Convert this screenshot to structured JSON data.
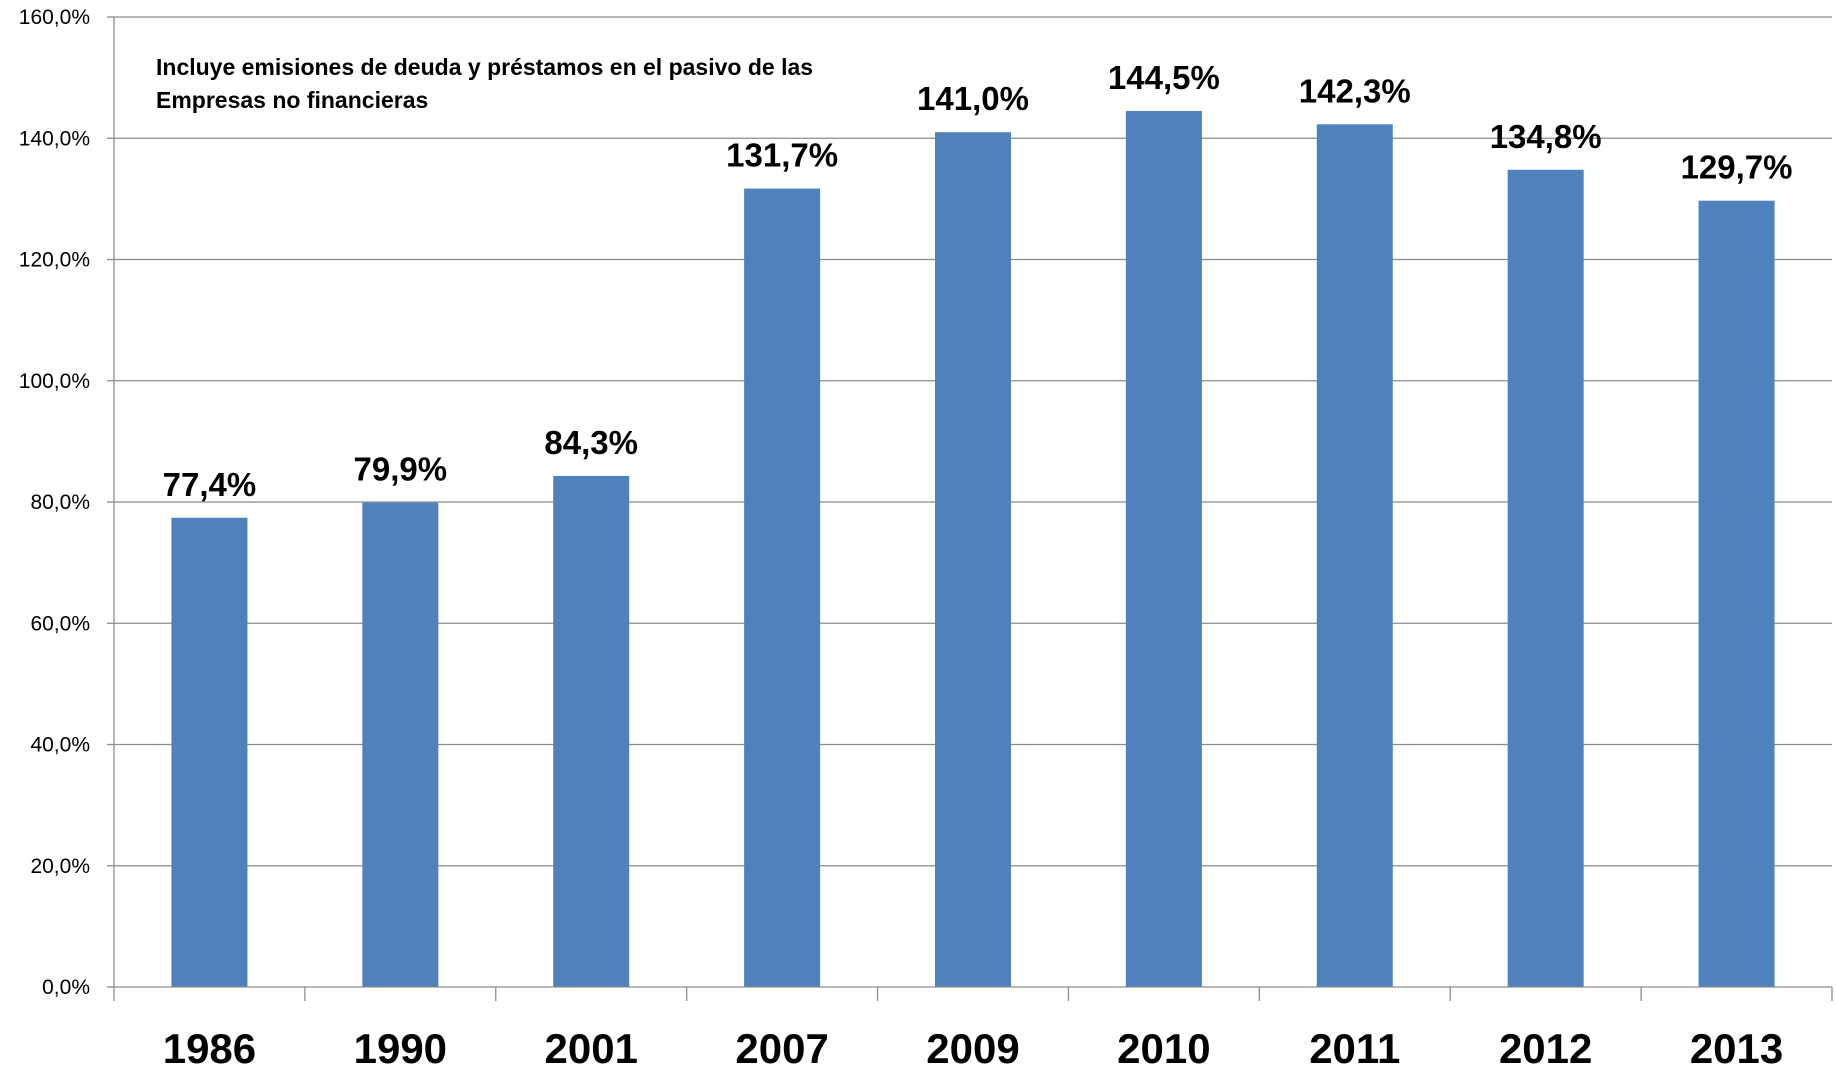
{
  "chart_data": {
    "type": "bar",
    "categories": [
      "1986",
      "1990",
      "2001",
      "2007",
      "2009",
      "2010",
      "2011",
      "2012",
      "2013"
    ],
    "values": [
      77.4,
      79.9,
      84.3,
      131.7,
      141.0,
      144.5,
      142.3,
      134.8,
      129.7
    ],
    "data_labels": [
      "77,4%",
      "79,9%",
      "84,3%",
      "131,7%",
      "141,0%",
      "144,5%",
      "142,3%",
      "134,8%",
      "129,7%"
    ],
    "y_ticks": [
      0,
      20,
      40,
      60,
      80,
      100,
      120,
      140,
      160
    ],
    "y_tick_labels": [
      "0,0%",
      "20,0%",
      "40,0%",
      "60,0%",
      "80,0%",
      "100,0%",
      "120,0%",
      "140,0%",
      "160,0%"
    ],
    "ylim": [
      0,
      160
    ],
    "grid": true,
    "legend": "none",
    "bar_color": "#4F81BD",
    "annotation": [
      "Incluye emisiones de deuda y préstamos en el pasivo de las",
      "Empresas no financieras"
    ]
  }
}
